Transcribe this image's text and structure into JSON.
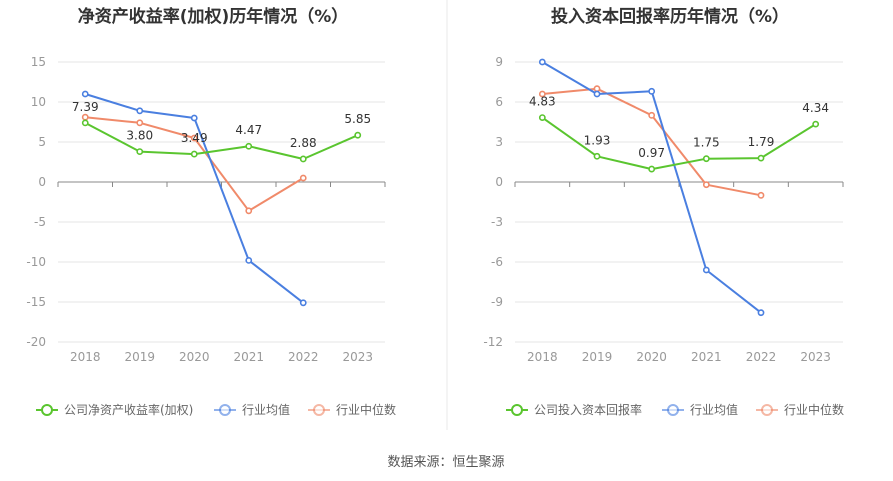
{
  "source_note": "数据来源：恒生聚源",
  "colors": {
    "company": "#5ac52f",
    "avg": "#4a7fe0",
    "median": "#f08a6a",
    "axis": "#888888",
    "grid": "#e6e6e6",
    "divider": "#e8e8e8"
  },
  "chart_data": [
    {
      "type": "line",
      "title": "净资产收益率(加权)历年情况（%）",
      "x": [
        "2018",
        "2019",
        "2020",
        "2021",
        "2022",
        "2023"
      ],
      "ylim": [
        -20,
        15
      ],
      "yticks": [
        "15",
        "10",
        "5",
        "0",
        "-5",
        "-10",
        "-15",
        "-20"
      ],
      "ytick_values": [
        15,
        10,
        5,
        0,
        -5,
        -10,
        -15,
        -20
      ],
      "grid": true,
      "legend_position": "bottom",
      "series": [
        {
          "name": "公司净资产收益率(加权)",
          "color_key": "company",
          "values": [
            7.39,
            3.8,
            3.49,
            4.47,
            2.88,
            5.85
          ],
          "labels": [
            "7.39",
            "3.80",
            "3.49",
            "4.47",
            "2.88",
            "5.85"
          ]
        },
        {
          "name": "行业均值",
          "color_key": "avg",
          "values": [
            11.0,
            8.9,
            8.0,
            -9.8,
            -15.1,
            null
          ]
        },
        {
          "name": "行业中位数",
          "color_key": "median",
          "values": [
            8.1,
            7.4,
            5.5,
            -3.6,
            0.5,
            null
          ]
        }
      ]
    },
    {
      "type": "line",
      "title": "投入资本回报率历年情况（%）",
      "x": [
        "2018",
        "2019",
        "2020",
        "2021",
        "2022",
        "2023"
      ],
      "ylim": [
        -12,
        9
      ],
      "yticks": [
        "9",
        "6",
        "3",
        "0",
        "-3",
        "-6",
        "-9",
        "-12"
      ],
      "ytick_values": [
        9,
        6,
        3,
        0,
        -3,
        -6,
        -9,
        -12
      ],
      "grid": true,
      "legend_position": "bottom",
      "series": [
        {
          "name": "公司投入资本回报率",
          "color_key": "company",
          "values": [
            4.83,
            1.93,
            0.97,
            1.75,
            1.79,
            4.34
          ],
          "labels": [
            "4.83",
            "1.93",
            "0.97",
            "1.75",
            "1.79",
            "4.34"
          ]
        },
        {
          "name": "行业均值",
          "color_key": "avg",
          "values": [
            9.0,
            6.6,
            6.8,
            -6.6,
            -9.8,
            null
          ]
        },
        {
          "name": "行业中位数",
          "color_key": "median",
          "values": [
            6.6,
            7.0,
            5.0,
            -0.2,
            -1.0,
            null
          ]
        }
      ]
    }
  ]
}
